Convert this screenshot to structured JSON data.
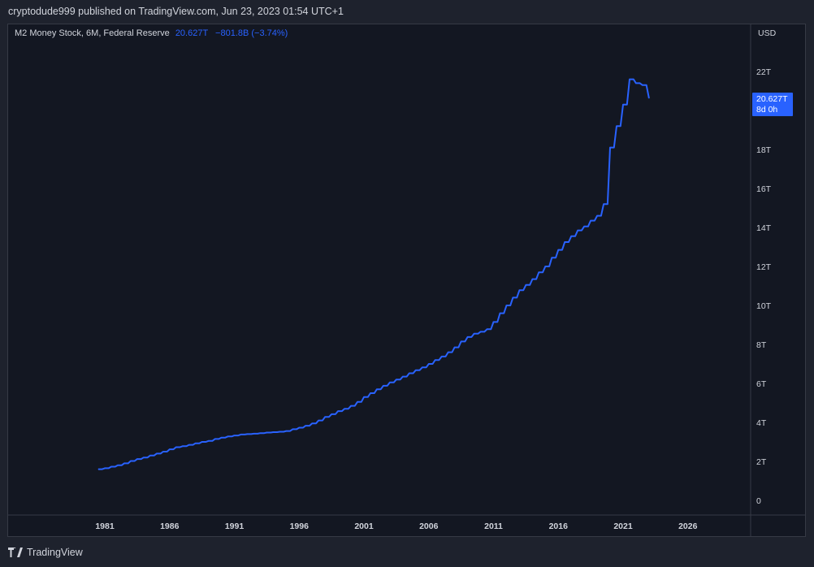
{
  "header": {
    "publisher_line": "cryptodude999 published on TradingView.com, Jun 23, 2023 01:54 UTC+1"
  },
  "legend": {
    "series_label": "M2 Money Stock, 6M, Federal Reserve",
    "last_value": "20.627T",
    "change": "−801.8B (−3.74%)"
  },
  "price_tag": {
    "value": "20.627T",
    "countdown": "8d 0h"
  },
  "footer": {
    "brand": "TradingView"
  },
  "colors": {
    "background": "#131722",
    "line": "#2962ff",
    "text": "#d1d4dc",
    "border": "#363a45"
  },
  "chart_data": {
    "type": "line",
    "currency_label": "USD",
    "x_ticks": [
      "1981",
      "1986",
      "1991",
      "1996",
      "2001",
      "2006",
      "2011",
      "2016",
      "2021",
      "2026"
    ],
    "y_ticks": [
      "0",
      "2T",
      "4T",
      "6T",
      "8T",
      "10T",
      "12T",
      "14T",
      "16T",
      "18T",
      "22T"
    ],
    "y_tick_values": [
      0,
      2,
      4,
      6,
      8,
      10,
      12,
      14,
      16,
      18,
      22
    ],
    "ylim": [
      0,
      24
    ],
    "xlim": [
      1980,
      2030
    ],
    "unit": "trillion USD",
    "series": [
      {
        "x": [
          1980.5,
          1981.0,
          1981.5,
          1982.0,
          1982.5,
          1983.0,
          1983.5,
          1984.0,
          1984.5,
          1985.0,
          1985.5,
          1986.0,
          1986.5,
          1987.0,
          1987.5,
          1988.0,
          1988.5,
          1989.0,
          1989.5,
          1990.0,
          1990.5,
          1991.0,
          1991.5,
          1992.0,
          1992.5,
          1993.0,
          1993.5,
          1994.0,
          1994.5,
          1995.0,
          1995.5,
          1996.0,
          1996.5,
          1997.0,
          1997.5,
          1998.0,
          1998.5,
          1999.0,
          1999.5,
          2000.0,
          2000.5,
          2001.0,
          2001.5,
          2002.0,
          2002.5,
          2003.0,
          2003.5,
          2004.0,
          2004.5,
          2005.0,
          2005.5,
          2006.0,
          2006.5,
          2007.0,
          2007.5,
          2008.0,
          2008.5,
          2009.0,
          2009.5,
          2010.0,
          2010.5,
          2011.0,
          2011.5,
          2012.0,
          2012.5,
          2013.0,
          2013.5,
          2014.0,
          2014.5,
          2015.0,
          2015.5,
          2016.0,
          2016.5,
          2017.0,
          2017.5,
          2018.0,
          2018.5,
          2019.0,
          2019.5,
          2020.0,
          2020.5,
          2021.0,
          2021.5,
          2022.0,
          2022.5,
          2023.0
        ],
        "values": [
          1.6,
          1.65,
          1.73,
          1.8,
          1.9,
          2.02,
          2.12,
          2.2,
          2.3,
          2.4,
          2.5,
          2.62,
          2.73,
          2.78,
          2.85,
          2.93,
          3.0,
          3.05,
          3.15,
          3.22,
          3.28,
          3.33,
          3.38,
          3.4,
          3.42,
          3.45,
          3.48,
          3.5,
          3.52,
          3.56,
          3.65,
          3.73,
          3.83,
          3.95,
          4.1,
          4.28,
          4.42,
          4.58,
          4.7,
          4.85,
          5.05,
          5.3,
          5.5,
          5.7,
          5.88,
          6.05,
          6.2,
          6.35,
          6.52,
          6.68,
          6.82,
          7.0,
          7.2,
          7.38,
          7.6,
          7.85,
          8.15,
          8.38,
          8.55,
          8.65,
          8.78,
          9.15,
          9.6,
          10.0,
          10.4,
          10.78,
          11.05,
          11.35,
          11.7,
          12.0,
          12.45,
          12.85,
          13.25,
          13.55,
          13.85,
          14.05,
          14.35,
          14.6,
          15.2,
          18.1,
          19.2,
          20.3,
          21.6,
          21.4,
          21.3,
          20.63
        ]
      }
    ],
    "last_value_label": "20.627T"
  }
}
